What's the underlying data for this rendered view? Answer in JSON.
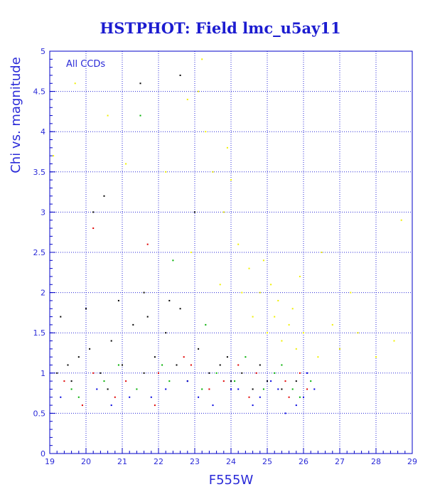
{
  "chart_data": {
    "type": "scatter",
    "title": "HSTPHOT: Field lmc_u5ay11",
    "xlabel": "F555W",
    "ylabel": "Chi vs. magnitude",
    "annotation": "All CCDs",
    "xlim": [
      19,
      29
    ],
    "ylim": [
      0,
      5
    ],
    "xticks": [
      "19",
      "20",
      "21",
      "22",
      "23",
      "24",
      "25",
      "26",
      "27",
      "28",
      "29"
    ],
    "yticks": [
      "0",
      "0.5",
      "1",
      "1.5",
      "2",
      "2.5",
      "3",
      "3.5",
      "4",
      "4.5",
      "5"
    ],
    "grid": true,
    "colors": {
      "frame": "#0000c8",
      "grid": "#2a2ad8",
      "text": "#1c1cd0"
    },
    "series": [
      {
        "color": "#000000",
        "points": [
          [
            19.2,
            1.0
          ],
          [
            19.5,
            1.1
          ],
          [
            19.8,
            1.2
          ],
          [
            20.1,
            1.3
          ],
          [
            20.4,
            1.0
          ],
          [
            20.7,
            1.4
          ],
          [
            21.0,
            1.1
          ],
          [
            21.3,
            1.6
          ],
          [
            21.6,
            1.0
          ],
          [
            21.9,
            1.2
          ],
          [
            22.2,
            1.5
          ],
          [
            22.5,
            1.1
          ],
          [
            22.8,
            0.9
          ],
          [
            23.1,
            1.3
          ],
          [
            23.4,
            1.0
          ],
          [
            23.7,
            1.1
          ],
          [
            24.0,
            0.9
          ],
          [
            24.3,
            1.0
          ],
          [
            24.6,
            0.8
          ],
          [
            25.0,
            0.9
          ],
          [
            25.4,
            0.8
          ],
          [
            25.8,
            0.9
          ],
          [
            19.3,
            1.7
          ],
          [
            20.0,
            1.8
          ],
          [
            20.9,
            1.9
          ],
          [
            21.7,
            1.7
          ],
          [
            22.6,
            1.8
          ],
          [
            20.5,
            3.2
          ],
          [
            22.6,
            4.7
          ],
          [
            21.5,
            4.6
          ],
          [
            23.0,
            3.0
          ],
          [
            20.2,
            3.0
          ],
          [
            21.6,
            2.0
          ],
          [
            22.3,
            1.9
          ],
          [
            19.6,
            0.9
          ],
          [
            20.6,
            0.8
          ],
          [
            23.9,
            1.2
          ],
          [
            24.8,
            1.1
          ]
        ]
      },
      {
        "color": "#e00000",
        "points": [
          [
            19.4,
            0.9
          ],
          [
            20.2,
            1.0
          ],
          [
            21.1,
            0.9
          ],
          [
            22.0,
            1.0
          ],
          [
            22.9,
            1.1
          ],
          [
            23.8,
            0.9
          ],
          [
            24.7,
            1.0
          ],
          [
            25.5,
            0.9
          ],
          [
            26.1,
            0.8
          ],
          [
            20.8,
            0.7
          ],
          [
            21.9,
            0.6
          ],
          [
            23.4,
            0.8
          ],
          [
            24.5,
            0.7
          ],
          [
            25.6,
            0.7
          ],
          [
            20.2,
            2.8
          ],
          [
            21.7,
            2.6
          ],
          [
            22.7,
            1.2
          ],
          [
            24.2,
            1.1
          ],
          [
            19.9,
            0.6
          ],
          [
            25.9,
            1.0
          ]
        ]
      },
      {
        "color": "#00b000",
        "points": [
          [
            19.6,
            0.8
          ],
          [
            20.5,
            0.9
          ],
          [
            21.4,
            0.8
          ],
          [
            22.3,
            0.9
          ],
          [
            23.2,
            0.8
          ],
          [
            24.1,
            0.9
          ],
          [
            24.9,
            0.8
          ],
          [
            25.7,
            0.8
          ],
          [
            26.2,
            0.9
          ],
          [
            20.9,
            1.1
          ],
          [
            22.1,
            1.1
          ],
          [
            23.6,
            1.0
          ],
          [
            25.2,
            1.0
          ],
          [
            25.9,
            0.7
          ],
          [
            21.5,
            4.2
          ],
          [
            22.4,
            2.4
          ],
          [
            23.3,
            1.6
          ],
          [
            24.4,
            1.2
          ],
          [
            19.8,
            0.7
          ],
          [
            25.4,
            1.1
          ]
        ]
      },
      {
        "color": "#0000e0",
        "points": [
          [
            19.3,
            0.7
          ],
          [
            20.3,
            0.8
          ],
          [
            21.2,
            0.7
          ],
          [
            22.2,
            0.8
          ],
          [
            23.1,
            0.7
          ],
          [
            24.0,
            0.8
          ],
          [
            24.8,
            0.7
          ],
          [
            25.3,
            0.8
          ],
          [
            25.8,
            0.6
          ],
          [
            26.3,
            0.8
          ],
          [
            20.7,
            0.6
          ],
          [
            21.8,
            0.7
          ],
          [
            23.5,
            0.6
          ],
          [
            24.6,
            0.6
          ],
          [
            25.5,
            0.5
          ],
          [
            26.0,
            0.7
          ],
          [
            22.8,
            0.9
          ],
          [
            24.2,
            0.8
          ],
          [
            25.1,
            0.9
          ],
          [
            26.1,
            1.0
          ]
        ]
      },
      {
        "color": "#f0f000",
        "points": [
          [
            25.0,
            1.5
          ],
          [
            25.2,
            1.7
          ],
          [
            25.4,
            1.4
          ],
          [
            25.6,
            1.6
          ],
          [
            25.8,
            1.3
          ],
          [
            26.0,
            1.5
          ],
          [
            25.3,
            1.9
          ],
          [
            25.7,
            1.8
          ],
          [
            24.8,
            2.0
          ],
          [
            24.5,
            2.3
          ],
          [
            24.2,
            2.6
          ],
          [
            23.8,
            3.0
          ],
          [
            23.5,
            3.5
          ],
          [
            23.3,
            4.0
          ],
          [
            23.1,
            4.5
          ],
          [
            23.2,
            4.9
          ],
          [
            24.9,
            2.4
          ],
          [
            25.1,
            2.1
          ],
          [
            26.4,
            1.2
          ],
          [
            27.0,
            1.3
          ],
          [
            27.5,
            1.5
          ],
          [
            28.0,
            1.2
          ],
          [
            28.5,
            1.4
          ],
          [
            19.1,
            3.7
          ],
          [
            19.7,
            4.6
          ],
          [
            20.6,
            4.2
          ],
          [
            21.1,
            3.6
          ],
          [
            22.2,
            3.5
          ],
          [
            26.5,
            2.5
          ],
          [
            27.3,
            2.0
          ],
          [
            28.7,
            2.9
          ],
          [
            24.0,
            3.4
          ],
          [
            23.7,
            2.1
          ],
          [
            22.9,
            2.5
          ],
          [
            24.6,
            1.7
          ],
          [
            25.9,
            2.2
          ],
          [
            26.8,
            1.6
          ],
          [
            24.3,
            2.0
          ],
          [
            23.9,
            3.8
          ],
          [
            22.8,
            4.4
          ]
        ]
      }
    ]
  }
}
